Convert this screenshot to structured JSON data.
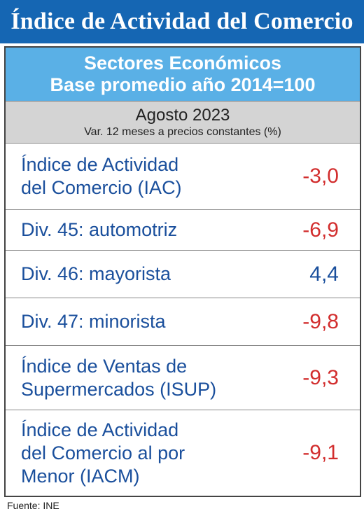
{
  "title": "Índice de Actividad del Comercio",
  "subheader": {
    "line1": "Sectores Económicos",
    "line2": "Base promedio año 2014=100"
  },
  "period": {
    "month": "Agosto 2023",
    "note": "Var. 12 meses a precios constantes (%)"
  },
  "rows": [
    {
      "label_lines": [
        "Índice de Actividad",
        "del Comercio (IAC)"
      ],
      "value": "-3,0",
      "sign": "negative"
    },
    {
      "label_lines": [
        "Div. 45: automotriz"
      ],
      "value": "-6,9",
      "sign": "negative"
    },
    {
      "label_lines": [
        "Div. 46: mayorista"
      ],
      "value": "4,4",
      "sign": "positive"
    },
    {
      "label_lines": [
        "Div. 47: minorista"
      ],
      "value": "-9,8",
      "sign": "negative"
    },
    {
      "label_lines": [
        "Índice de Ventas de",
        "Supermercados (ISUP)"
      ],
      "value": "-9,3",
      "sign": "negative"
    },
    {
      "label_lines": [
        "Índice de Actividad",
        "del Comercio al por",
        "Menor (IACM)"
      ],
      "value": "-9,1",
      "sign": "negative"
    }
  ],
  "source": "Fuente: INE",
  "colors": {
    "title_bg": "#1566b3",
    "subheader_bg": "#5ab0e6",
    "period_bg": "#d4d4d4",
    "label_text": "#1a4f9c",
    "negative_value": "#d22d2d",
    "positive_value": "#1a4f9c"
  }
}
